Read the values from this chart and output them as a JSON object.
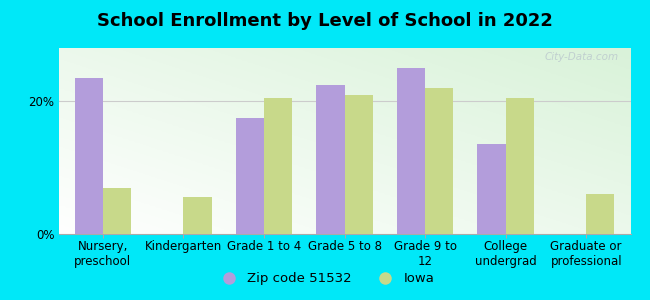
{
  "title": "School Enrollment by Level of School in 2022",
  "categories": [
    "Nursery,\npreschool",
    "Kindergarten",
    "Grade 1 to 4",
    "Grade 5 to 8",
    "Grade 9 to\n12",
    "College\nundergrad",
    "Graduate or\nprofessional"
  ],
  "zip_values": [
    23.5,
    0.0,
    17.5,
    22.5,
    25.0,
    13.5,
    0.0
  ],
  "iowa_values": [
    7.0,
    5.5,
    20.5,
    21.0,
    22.0,
    20.5,
    6.0
  ],
  "zip_color": "#b39ddb",
  "iowa_color": "#c8d98a",
  "outer_background": "#00e8f8",
  "yticks": [
    0,
    20
  ],
  "ytick_labels": [
    "0%",
    "20%"
  ],
  "ylim": [
    0,
    28
  ],
  "legend_zip_label": "Zip code 51532",
  "legend_iowa_label": "Iowa",
  "watermark": "City-Data.com",
  "bar_width": 0.35,
  "title_fontsize": 13,
  "tick_fontsize": 8.5,
  "legend_fontsize": 9.5
}
